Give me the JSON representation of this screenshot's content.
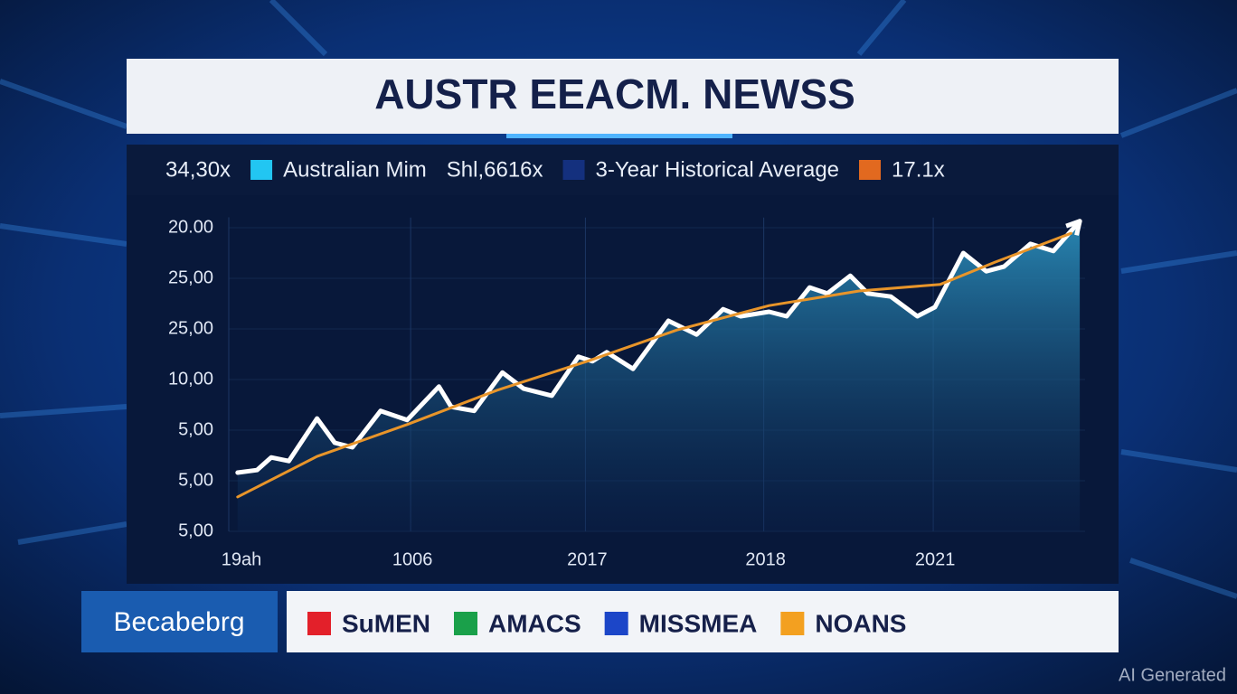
{
  "header": {
    "title": "AUSTR EEACM. NEWSS"
  },
  "chart_data": {
    "type": "line",
    "header_row": [
      {
        "text": "34,30x"
      },
      {
        "swatch": "#22c6f2",
        "text": "Australian Mim"
      },
      {
        "text": "Shl,6616x"
      },
      {
        "swatch": "#14307e",
        "text": "3-Year Historical Average"
      },
      {
        "swatch": "#e2691f",
        "text": "17.1x"
      }
    ],
    "xlim": [
      0,
      4.85
    ],
    "xticks": [
      {
        "value": 0,
        "label": "19ah"
      },
      {
        "value": 1.03,
        "label": "1006"
      },
      {
        "value": 2.02,
        "label": "2017"
      },
      {
        "value": 3.03,
        "label": "2018"
      },
      {
        "value": 3.99,
        "label": "2021"
      }
    ],
    "ylim": [
      0,
      6.2
    ],
    "yticks": [
      {
        "value": 0,
        "label": "5,00"
      },
      {
        "value": 1,
        "label": "5,00"
      },
      {
        "value": 2,
        "label": "5,00"
      },
      {
        "value": 3,
        "label": "10,00"
      },
      {
        "value": 4,
        "label": "25,00"
      },
      {
        "value": 5,
        "label": "25,00"
      },
      {
        "value": 6,
        "label": "20.00"
      }
    ],
    "grid": true,
    "series": [
      {
        "color": "#ffffff",
        "area": true,
        "x": [
          0.05,
          0.16,
          0.24,
          0.34,
          0.5,
          0.6,
          0.7,
          0.86,
          1.01,
          1.19,
          1.26,
          1.39,
          1.55,
          1.67,
          1.83,
          1.98,
          2.06,
          2.14,
          2.29,
          2.49,
          2.65,
          2.8,
          2.9,
          3.06,
          3.16,
          3.29,
          3.39,
          3.52,
          3.62,
          3.75,
          3.9,
          4.0,
          4.16,
          4.29,
          4.39,
          4.54,
          4.67,
          4.82
        ],
        "values": [
          1.16,
          1.21,
          1.46,
          1.39,
          2.23,
          1.75,
          1.66,
          2.38,
          2.2,
          2.86,
          2.46,
          2.38,
          3.14,
          2.82,
          2.68,
          3.45,
          3.36,
          3.54,
          3.21,
          4.16,
          3.89,
          4.39,
          4.25,
          4.34,
          4.25,
          4.82,
          4.7,
          5.05,
          4.7,
          4.64,
          4.25,
          4.43,
          5.5,
          5.14,
          5.23,
          5.68,
          5.54,
          6.13
        ]
      },
      {
        "color": "#e8952a",
        "area": false,
        "x": [
          0.05,
          0.5,
          1.01,
          1.52,
          2.03,
          2.54,
          3.06,
          3.57,
          4.03,
          4.34,
          4.77
        ],
        "values": [
          0.68,
          1.48,
          2.11,
          2.79,
          3.36,
          3.98,
          4.46,
          4.75,
          4.88,
          5.32,
          5.89
        ]
      }
    ]
  },
  "footer": {
    "brand": "Becabebrg",
    "ticker": [
      {
        "color": "#e3202a",
        "text": "SuMEN"
      },
      {
        "color": "#1aa04a",
        "text": "AMACS"
      },
      {
        "color": "#1c46c8",
        "text": "MISSMEA"
      },
      {
        "color": "#f3a020",
        "text": "NOANS"
      }
    ],
    "watermark": "AI Generated"
  }
}
